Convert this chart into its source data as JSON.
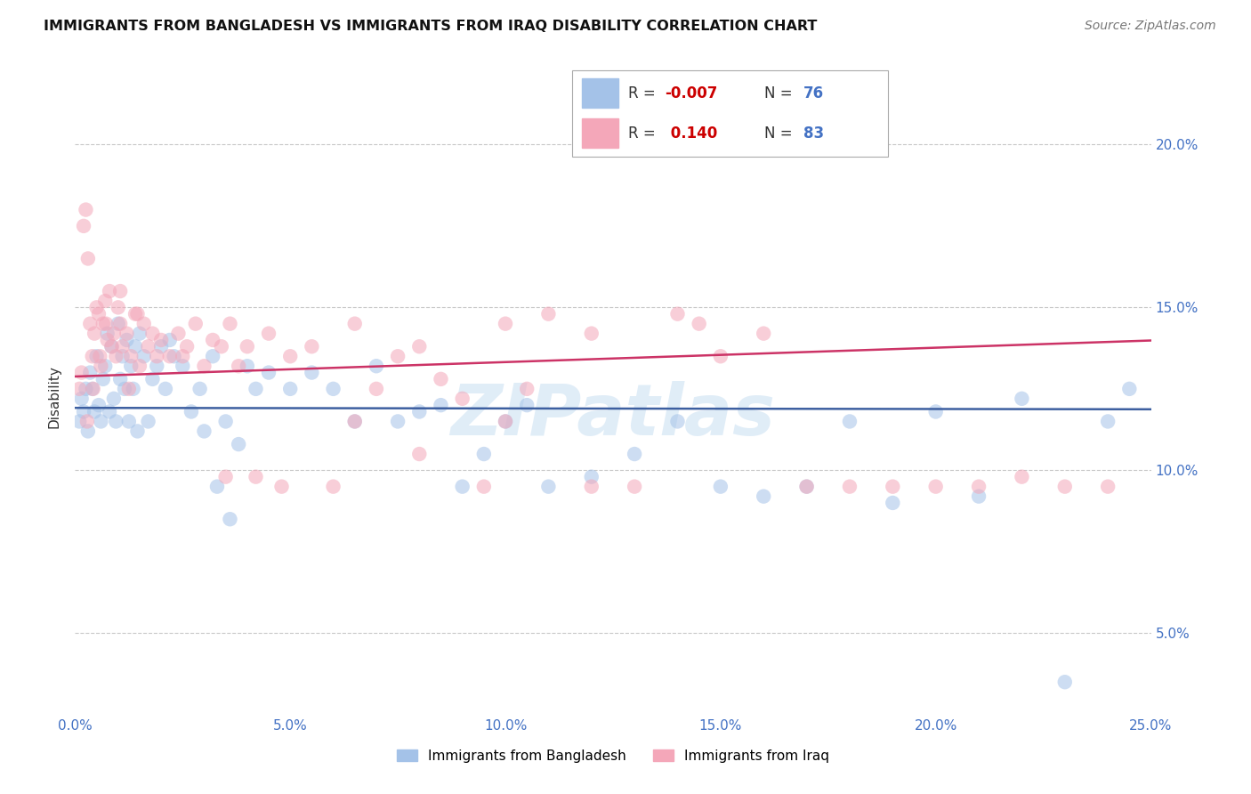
{
  "title": "IMMIGRANTS FROM BANGLADESH VS IMMIGRANTS FROM IRAQ DISABILITY CORRELATION CHART",
  "source": "Source: ZipAtlas.com",
  "ylabel": "Disability",
  "xlim": [
    0.0,
    25.0
  ],
  "ylim": [
    2.5,
    22.0
  ],
  "ytick_vals": [
    5,
    10,
    15,
    20
  ],
  "xtick_vals": [
    0,
    5,
    10,
    15,
    20,
    25
  ],
  "bangladesh_color": "#a4c2e8",
  "iraq_color": "#f4a7b9",
  "trend_bangladesh_color": "#3d5fa0",
  "trend_iraq_color": "#cc3366",
  "bangladesh_R": -0.007,
  "iraq_R": 0.14,
  "bangladesh_N": 76,
  "iraq_N": 83,
  "legend_labels_bottom": [
    "Immigrants from Bangladesh",
    "Immigrants from Iraq"
  ],
  "bangladesh_x": [
    0.1,
    0.15,
    0.2,
    0.25,
    0.3,
    0.35,
    0.4,
    0.45,
    0.5,
    0.55,
    0.6,
    0.65,
    0.7,
    0.75,
    0.8,
    0.85,
    0.9,
    0.95,
    1.0,
    1.05,
    1.1,
    1.15,
    1.2,
    1.25,
    1.3,
    1.35,
    1.4,
    1.45,
    1.5,
    1.6,
    1.7,
    1.8,
    1.9,
    2.0,
    2.1,
    2.2,
    2.3,
    2.5,
    2.7,
    2.9,
    3.0,
    3.2,
    3.5,
    3.8,
    4.0,
    4.2,
    4.5,
    5.0,
    5.5,
    6.0,
    6.5,
    7.0,
    7.5,
    8.0,
    8.5,
    9.0,
    9.5,
    10.0,
    10.5,
    11.0,
    12.0,
    13.0,
    14.0,
    15.0,
    16.0,
    17.0,
    18.0,
    19.0,
    20.0,
    21.0,
    22.0,
    23.0,
    24.0,
    24.5,
    3.3,
    3.6
  ],
  "bangladesh_y": [
    11.5,
    12.2,
    11.8,
    12.5,
    11.2,
    13.0,
    12.5,
    11.8,
    13.5,
    12.0,
    11.5,
    12.8,
    13.2,
    14.2,
    11.8,
    13.8,
    12.2,
    11.5,
    14.5,
    12.8,
    13.5,
    12.5,
    14.0,
    11.5,
    13.2,
    12.5,
    13.8,
    11.2,
    14.2,
    13.5,
    11.5,
    12.8,
    13.2,
    13.8,
    12.5,
    14.0,
    13.5,
    13.2,
    11.8,
    12.5,
    11.2,
    13.5,
    11.5,
    10.8,
    13.2,
    12.5,
    13.0,
    12.5,
    13.0,
    12.5,
    11.5,
    13.2,
    11.5,
    11.8,
    12.0,
    9.5,
    10.5,
    11.5,
    12.0,
    9.5,
    9.8,
    10.5,
    11.5,
    9.5,
    9.2,
    9.5,
    11.5,
    9.0,
    11.8,
    9.2,
    12.2,
    3.5,
    11.5,
    12.5,
    9.5,
    8.5
  ],
  "iraq_x": [
    0.1,
    0.15,
    0.2,
    0.25,
    0.3,
    0.35,
    0.4,
    0.45,
    0.5,
    0.55,
    0.6,
    0.65,
    0.7,
    0.75,
    0.8,
    0.85,
    0.9,
    0.95,
    1.0,
    1.05,
    1.1,
    1.2,
    1.3,
    1.4,
    1.5,
    1.6,
    1.7,
    1.8,
    1.9,
    2.0,
    2.2,
    2.4,
    2.6,
    2.8,
    3.0,
    3.2,
    3.4,
    3.6,
    3.8,
    4.0,
    4.2,
    4.5,
    5.0,
    5.5,
    6.0,
    6.5,
    7.0,
    7.5,
    8.0,
    8.5,
    9.0,
    9.5,
    10.0,
    10.5,
    11.0,
    12.0,
    13.0,
    14.0,
    15.0,
    16.0,
    17.0,
    18.0,
    19.0,
    20.0,
    21.0,
    22.0,
    23.0,
    24.0,
    0.28,
    0.42,
    0.58,
    0.72,
    1.05,
    1.25,
    1.45,
    2.5,
    3.5,
    4.8,
    6.5,
    8.0,
    10.0,
    12.0,
    14.5
  ],
  "iraq_y": [
    12.5,
    13.0,
    17.5,
    18.0,
    16.5,
    14.5,
    13.5,
    14.2,
    15.0,
    14.8,
    13.2,
    14.5,
    15.2,
    14.0,
    15.5,
    13.8,
    14.2,
    13.5,
    15.0,
    14.5,
    13.8,
    14.2,
    13.5,
    14.8,
    13.2,
    14.5,
    13.8,
    14.2,
    13.5,
    14.0,
    13.5,
    14.2,
    13.8,
    14.5,
    13.2,
    14.0,
    13.8,
    14.5,
    13.2,
    13.8,
    9.8,
    14.2,
    13.5,
    13.8,
    9.5,
    14.5,
    12.5,
    13.5,
    13.8,
    12.8,
    12.2,
    9.5,
    14.5,
    12.5,
    14.8,
    14.2,
    9.5,
    14.8,
    13.5,
    14.2,
    9.5,
    9.5,
    9.5,
    9.5,
    9.5,
    9.8,
    9.5,
    9.5,
    11.5,
    12.5,
    13.5,
    14.5,
    15.5,
    12.5,
    14.8,
    13.5,
    9.8,
    9.5,
    11.5,
    10.5,
    11.5,
    9.5,
    14.5
  ]
}
